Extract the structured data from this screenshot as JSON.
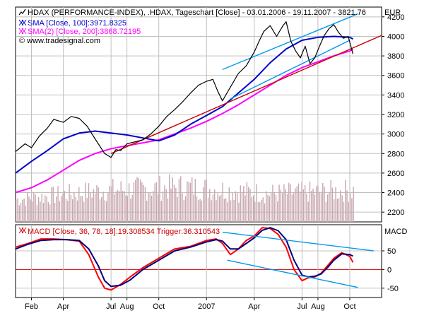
{
  "chart_data": [
    {
      "type": "line",
      "panel": "price",
      "title": "HDAX (PERFORMANCE-INDEX), .HDAX, Tageschart [Close] - 03.01.2006 - 19.11.2007 - 3821.76",
      "currency": "EUR",
      "watermark": "© www.tradesignal.com",
      "ylim": [
        2100,
        4300
      ],
      "yticks": [
        2200,
        2400,
        2600,
        2800,
        3000,
        3200,
        3400,
        3600,
        3800,
        4000,
        4200
      ],
      "xlim": [
        0,
        23
      ],
      "series": [
        {
          "name": "HDAX close",
          "color": "#000000",
          "x": [
            0,
            0.6,
            1,
            1.5,
            2,
            2.4,
            3,
            3.5,
            4,
            4.5,
            5,
            5.2,
            5.6,
            6,
            6.3,
            6.6,
            7,
            7.5,
            8,
            8.5,
            9,
            9.5,
            10,
            10.5,
            11,
            11.5,
            12,
            12.4,
            12.7,
            13,
            13.5,
            14,
            14.5,
            15,
            15.3,
            15.6,
            16,
            16.4,
            16.8,
            17,
            17.3,
            17.6,
            17.9,
            18.2,
            18.5,
            18.8,
            19.1,
            19.4,
            19.7,
            20,
            20.3,
            20.6,
            20.9,
            21.2
          ],
          "values": [
            2820,
            2900,
            2860,
            2980,
            3060,
            3150,
            3120,
            3180,
            3160,
            3080,
            2950,
            2900,
            2800,
            2760,
            2840,
            2830,
            2900,
            2920,
            2940,
            3000,
            3080,
            3180,
            3250,
            3330,
            3420,
            3500,
            3540,
            3560,
            3440,
            3340,
            3480,
            3620,
            3700,
            3840,
            3950,
            4050,
            4110,
            4000,
            4110,
            4150,
            3950,
            3850,
            3780,
            3900,
            3720,
            3780,
            3900,
            4010,
            4080,
            4120,
            4040,
            3980,
            4000,
            3820
          ]
        },
        {
          "name": "SMA [Close, 100]",
          "label": "SMA [Close, 100]:3971.8325",
          "color": "#0000cc",
          "x": [
            0,
            1,
            2,
            3,
            4,
            5,
            6,
            7,
            8,
            9,
            10,
            11,
            12,
            13,
            14,
            15,
            16,
            17,
            18,
            19,
            20,
            21,
            21.2
          ],
          "values": [
            2600,
            2720,
            2830,
            2950,
            3010,
            3030,
            3010,
            2990,
            2960,
            2930,
            2990,
            3100,
            3190,
            3280,
            3420,
            3560,
            3730,
            3870,
            3960,
            3990,
            4000,
            3990,
            3972
          ]
        },
        {
          "name": "SMA(2) [Close, 200]",
          "label": "SMA(2) [Close, 200]:3868.72195",
          "color": "#ff00ff",
          "x": [
            0,
            1,
            2,
            3,
            4,
            5,
            6,
            7,
            8,
            9,
            10,
            11,
            12,
            13,
            14,
            15,
            16,
            17,
            18,
            19,
            20,
            21,
            21.2
          ],
          "values": [
            2400,
            2450,
            2530,
            2630,
            2730,
            2800,
            2850,
            2880,
            2910,
            2940,
            3000,
            3060,
            3130,
            3210,
            3300,
            3400,
            3500,
            3600,
            3680,
            3740,
            3800,
            3850,
            3869
          ]
        },
        {
          "name": "trendline-lower-red",
          "color": "#cc0000",
          "x": [
            6,
            23
          ],
          "values": [
            2800,
            4010
          ]
        },
        {
          "name": "trendline-upper-blue",
          "color": "#0099ee",
          "x": [
            13,
            21.5
          ],
          "values": [
            3660,
            4230
          ]
        },
        {
          "name": "trendline-lower-blue",
          "color": "#0099ee",
          "x": [
            13.5,
            21
          ],
          "values": [
            3360,
            3960
          ]
        }
      ],
      "volume": {
        "name": "Volume",
        "color": "#c8a8b0",
        "base": 2150,
        "bars": 210,
        "levels": [
          2330,
          2420,
          2460,
          2390,
          2420
        ]
      }
    },
    {
      "type": "line",
      "panel": "macd",
      "title": "MACD [Close, 36, 78, 18]:19.308534 Trigger:36.310543",
      "axis_label": "MACD",
      "ylim": [
        -75,
        120
      ],
      "yticks": [
        -50,
        0,
        50
      ],
      "zero_line_color": "#cc0000",
      "xlim": [
        0,
        23
      ],
      "series": [
        {
          "name": "MACD",
          "label": "MACD [Close, 36, 78, 18]:19.308534",
          "color": "#ff0000",
          "x": [
            0,
            0.8,
            1.6,
            2.4,
            3.2,
            4,
            4.6,
            5.2,
            5.6,
            6,
            6.6,
            7.2,
            8,
            9,
            10,
            11,
            12,
            12.6,
            13,
            13.5,
            14,
            14.5,
            15,
            15.5,
            16,
            16.5,
            17,
            17.5,
            18,
            18.4,
            18.8,
            19.2,
            19.6,
            20,
            20.5,
            21,
            21.2
          ],
          "values": [
            60,
            70,
            82,
            82,
            80,
            76,
            40,
            -20,
            -50,
            -55,
            -40,
            -20,
            5,
            30,
            55,
            62,
            78,
            82,
            70,
            40,
            55,
            78,
            90,
            112,
            110,
            94,
            60,
            0,
            -30,
            -22,
            -20,
            -10,
            10,
            30,
            45,
            35,
            19
          ]
        },
        {
          "name": "Trigger",
          "label": "Trigger:36.310543",
          "color": "#000080",
          "x": [
            0,
            0.8,
            1.6,
            2.4,
            3.2,
            4,
            4.6,
            5.2,
            5.6,
            6,
            6.6,
            7.2,
            8,
            9,
            10,
            11,
            12,
            12.6,
            13,
            13.5,
            14,
            14.5,
            15,
            15.5,
            16,
            16.5,
            17,
            17.5,
            18,
            18.4,
            18.8,
            19.2,
            19.6,
            20,
            20.5,
            21,
            21.2
          ],
          "values": [
            55,
            68,
            78,
            80,
            80,
            78,
            55,
            10,
            -30,
            -45,
            -42,
            -28,
            0,
            25,
            50,
            60,
            74,
            80,
            76,
            55,
            55,
            70,
            85,
            105,
            112,
            104,
            80,
            25,
            -15,
            -20,
            -18,
            -12,
            5,
            25,
            42,
            40,
            36
          ]
        },
        {
          "name": "macd-trendline-upper",
          "color": "#0099ee",
          "x": [
            13,
            22.5
          ],
          "values": [
            100,
            50
          ]
        },
        {
          "name": "macd-trendline-lower",
          "color": "#0099ee",
          "x": [
            13.3,
            21.5
          ],
          "values": [
            25,
            -48
          ]
        }
      ]
    }
  ],
  "x_axis": {
    "tick_labels": [
      "Feb",
      "Apr",
      "Jul",
      "Aug",
      "Oct",
      "2007",
      "Apr",
      "Jul",
      "Aug",
      "Oct"
    ],
    "tick_x": [
      1,
      3,
      6,
      7,
      9,
      12,
      15,
      18,
      19,
      21
    ]
  },
  "legend": [
    {
      "icon": "hdax-icon",
      "text": "HDAX (PERFORMANCE-INDEX), .HDAX, Tageschart [Close] - 03.01.2006 - 19.11.2007 - 3821.76",
      "color": "#000000"
    },
    {
      "icon": "sma-icon",
      "text": "SMA [Close, 100]:3971.8325",
      "color": "#0000cc"
    },
    {
      "icon": "sma2-icon",
      "text": "SMA(2) [Close, 200]:3868.72195",
      "color": "#ff00ff"
    },
    {
      "icon": "",
      "text": "© www.tradesignal.com",
      "color": "#000000"
    }
  ],
  "macd_legend": {
    "text": "MACD [Close, 36, 78, 18]:19.308534 Trigger:36.310543",
    "color": "#cc0000"
  },
  "colors": {
    "grid": "#c0c0c0",
    "frame": "#000000",
    "background": "#ffffff"
  }
}
